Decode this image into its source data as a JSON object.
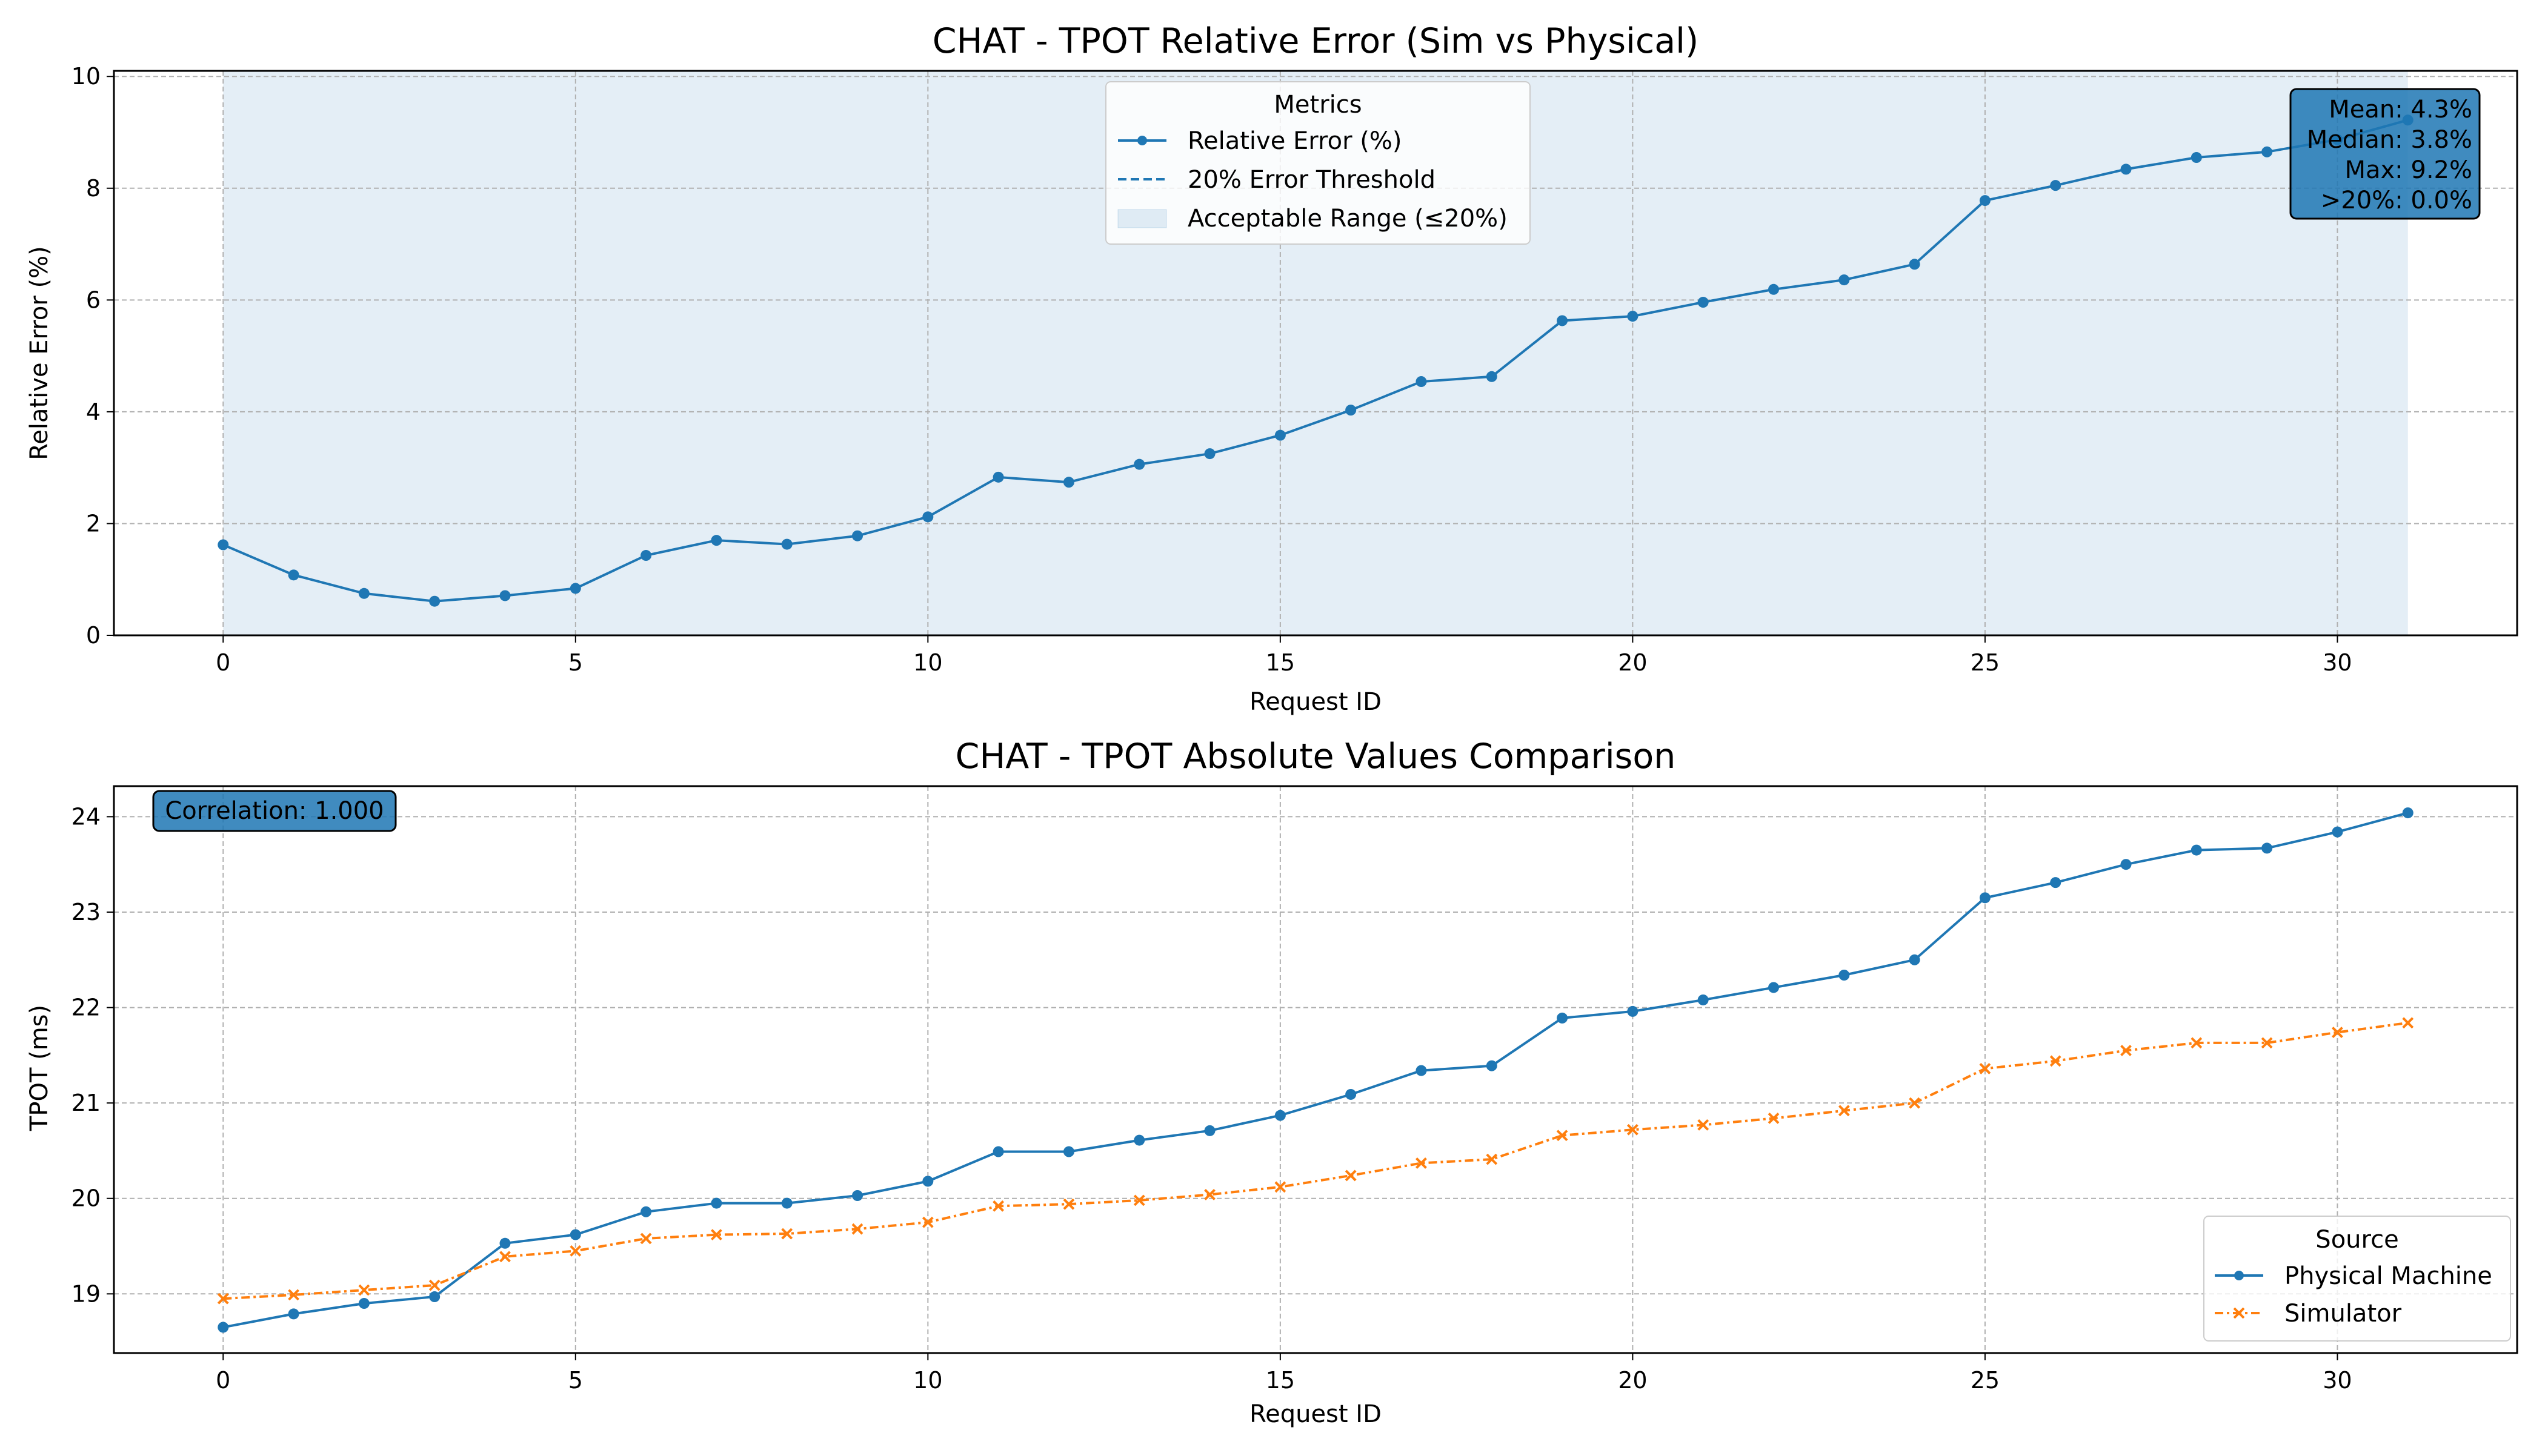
{
  "chart_data": [
    {
      "type": "line",
      "title": "CHAT - TPOT Relative Error (Sim vs Physical)",
      "xlabel": "Request ID",
      "ylabel": "Relative Error (%)",
      "xlim": [
        -1.55,
        32.55
      ],
      "ylim": [
        0,
        10.1
      ],
      "xticks": [
        0,
        5,
        10,
        15,
        20,
        25,
        30
      ],
      "yticks": [
        0,
        2,
        4,
        6,
        8,
        10
      ],
      "grid": true,
      "legend": {
        "title": "Metrics",
        "placement": "top-center",
        "entries": [
          "Relative Error (%)",
          "20% Error Threshold",
          "Acceptable Range (≤20%)"
        ]
      },
      "acceptable_range": {
        "x": [
          0,
          31
        ],
        "y": [
          0,
          20
        ]
      },
      "error_threshold": 20,
      "stats_box": {
        "lines": [
          "Mean: 4.3%",
          "Median: 3.8%",
          "Max: 9.2%",
          ">20%: 0.0%"
        ],
        "placement": "top-right"
      },
      "series": [
        {
          "name": "Relative Error (%)",
          "color": "#1f77b4",
          "marker": "circle",
          "x": [
            0,
            1,
            2,
            3,
            4,
            5,
            6,
            7,
            8,
            9,
            10,
            11,
            12,
            13,
            14,
            15,
            16,
            17,
            18,
            19,
            20,
            21,
            22,
            23,
            24,
            25,
            26,
            27,
            28,
            29,
            30,
            31
          ],
          "values": [
            1.62,
            1.08,
            0.75,
            0.61,
            0.71,
            0.84,
            1.43,
            1.7,
            1.63,
            1.78,
            2.12,
            2.83,
            2.74,
            3.06,
            3.25,
            3.58,
            4.03,
            4.54,
            4.63,
            5.63,
            5.71,
            5.96,
            6.19,
            6.36,
            6.64,
            7.78,
            8.05,
            8.34,
            8.55,
            8.65,
            8.87,
            9.22
          ]
        }
      ]
    },
    {
      "type": "line",
      "title": "CHAT - TPOT Absolute Values Comparison",
      "xlabel": "Request ID",
      "ylabel": "TPOT (ms)",
      "xlim": [
        -1.55,
        32.55
      ],
      "ylim": [
        18.38,
        24.32
      ],
      "xticks": [
        0,
        5,
        10,
        15,
        20,
        25,
        30
      ],
      "yticks": [
        19,
        20,
        21,
        22,
        23,
        24
      ],
      "grid": true,
      "legend": {
        "title": "Source",
        "placement": "bottom-right",
        "entries": [
          "Physical Machine",
          "Simulator"
        ]
      },
      "annotation": {
        "text": "Correlation: 1.000",
        "placement": "top-left"
      },
      "series": [
        {
          "name": "Physical Machine",
          "color": "#1f77b4",
          "marker": "circle",
          "x": [
            0,
            1,
            2,
            3,
            4,
            5,
            6,
            7,
            8,
            9,
            10,
            11,
            12,
            13,
            14,
            15,
            16,
            17,
            18,
            19,
            20,
            21,
            22,
            23,
            24,
            25,
            26,
            27,
            28,
            29,
            30,
            31
          ],
          "values": [
            18.65,
            18.79,
            18.9,
            18.97,
            19.53,
            19.62,
            19.86,
            19.95,
            19.95,
            20.03,
            20.18,
            20.49,
            20.49,
            20.61,
            20.71,
            20.87,
            21.09,
            21.34,
            21.39,
            21.89,
            21.96,
            22.08,
            22.21,
            22.34,
            22.5,
            23.15,
            23.31,
            23.5,
            23.65,
            23.67,
            23.84,
            24.04
          ]
        },
        {
          "name": "Simulator",
          "color": "#ff7f0e",
          "marker": "x",
          "x": [
            0,
            1,
            2,
            3,
            4,
            5,
            6,
            7,
            8,
            9,
            10,
            11,
            12,
            13,
            14,
            15,
            16,
            17,
            18,
            19,
            20,
            21,
            22,
            23,
            24,
            25,
            26,
            27,
            28,
            29,
            30,
            31
          ],
          "values": [
            18.95,
            18.99,
            19.04,
            19.09,
            19.39,
            19.45,
            19.58,
            19.62,
            19.63,
            19.68,
            19.75,
            19.92,
            19.94,
            19.98,
            20.04,
            20.12,
            20.24,
            20.37,
            20.41,
            20.66,
            20.72,
            20.77,
            20.84,
            20.92,
            21.0,
            21.36,
            21.44,
            21.55,
            21.63,
            21.63,
            21.74,
            21.84
          ]
        }
      ]
    }
  ]
}
